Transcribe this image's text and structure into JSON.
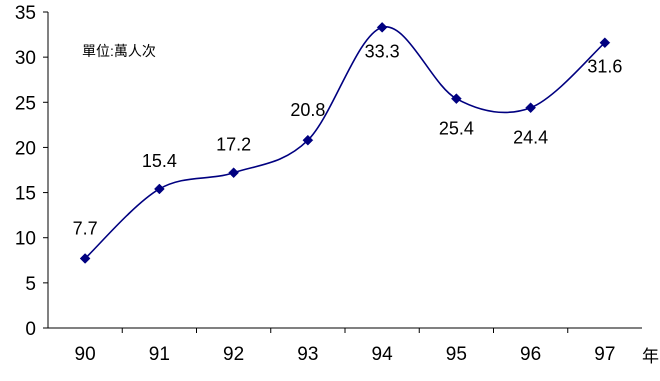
{
  "chart_data": {
    "type": "line",
    "categories": [
      "90",
      "91",
      "92",
      "93",
      "94",
      "95",
      "96",
      "97"
    ],
    "series": [
      {
        "values": [
          7.7,
          15.4,
          17.2,
          20.8,
          33.3,
          25.4,
          24.4,
          31.6
        ]
      }
    ],
    "data_labels": [
      "7.7",
      "15.4",
      "17.2",
      "20.8",
      "33.3",
      "25.4",
      "24.4",
      "31.6"
    ],
    "y_ticks": [
      "0",
      "5",
      "10",
      "15",
      "20",
      "25",
      "30",
      "35"
    ],
    "ylim": [
      0,
      35
    ],
    "y_step": 5,
    "xlabel": "年",
    "ylabel": "",
    "unit_note": "單位:萬人次",
    "title": "",
    "smooth": true,
    "grid": false,
    "legend": "none",
    "line_color": "#000080",
    "marker_color": "#000080",
    "marker_shape": "diamond"
  }
}
